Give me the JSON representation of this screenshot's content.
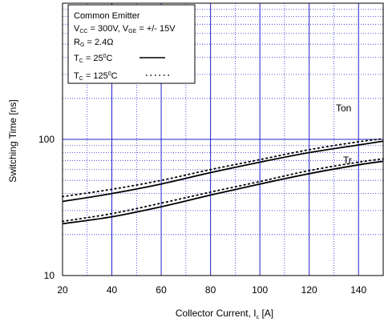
{
  "chart_data": {
    "type": "line",
    "xlabel": "Collector Current, I",
    "xlabel_sub": "c",
    "xlabel_unit": "[A]",
    "ylabel": "Switching Time [ns]",
    "x_scale": "linear",
    "y_scale": "log",
    "xlim": [
      20,
      150
    ],
    "ylim": [
      10,
      1000
    ],
    "x_ticks": [
      20,
      40,
      60,
      80,
      100,
      120,
      140
    ],
    "y_tick_labels": [
      "10",
      "100"
    ],
    "y_ticks": [
      10,
      100
    ],
    "grid": true,
    "legend": {
      "placement": "top-left",
      "line1": "Common Emitter",
      "line2": {
        "v1": "V",
        "v1_sub": "CC",
        "v1_val": " = 300V, ",
        "v2": "V",
        "v2_sub": "GE",
        "v2_val": " = +/- 15V"
      },
      "line3": {
        "r": "R",
        "r_sub": "G",
        "r_val": " = 2.4Ω"
      },
      "line4": {
        "t": "T",
        "t_sub": "C",
        "t_eq": " = 25",
        "t_sup": "0",
        "t_unit": "C"
      },
      "line5": {
        "t": "T",
        "t_sub": "C",
        "t_eq": " = 125",
        "t_sup": "0",
        "t_unit": "C"
      }
    },
    "series": [
      {
        "name": "Ton",
        "condition": "25",
        "style": "solid",
        "x": [
          20,
          40,
          60,
          80,
          100,
          120,
          140,
          150
        ],
        "y": [
          35,
          40,
          47,
          57,
          68,
          80,
          91,
          97
        ]
      },
      {
        "name": "Ton",
        "condition": "125",
        "style": "dotted",
        "x": [
          20,
          40,
          60,
          80,
          100,
          120,
          140,
          150
        ],
        "y": [
          38,
          43,
          50,
          60,
          71,
          84,
          96,
          101
        ]
      },
      {
        "name": "Tr",
        "condition": "25",
        "style": "solid",
        "x": [
          20,
          40,
          60,
          80,
          100,
          120,
          140,
          150
        ],
        "y": [
          24,
          27,
          32,
          39,
          47,
          56,
          65,
          69
        ]
      },
      {
        "name": "Tr",
        "condition": "125",
        "style": "dotted",
        "x": [
          20,
          40,
          60,
          80,
          100,
          120,
          140,
          150
        ],
        "y": [
          25,
          28.5,
          34,
          41,
          49,
          59,
          68,
          72
        ]
      }
    ],
    "annotations": [
      "Ton",
      "Tr"
    ]
  }
}
